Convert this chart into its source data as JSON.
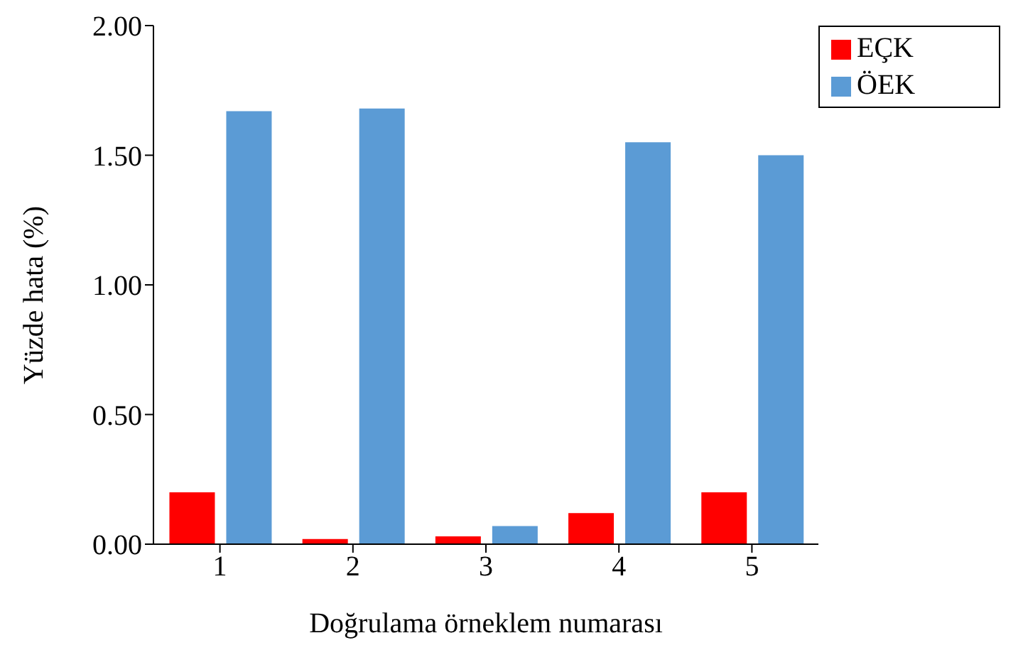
{
  "chart_data": {
    "type": "bar",
    "xlabel": "Doğrulama örneklem numarası",
    "ylabel": "Yüzde  hata (%)",
    "categories": [
      "1",
      "2",
      "3",
      "4",
      "5"
    ],
    "series": [
      {
        "name": "EÇK",
        "color": "#ff0000",
        "values": [
          0.2,
          0.02,
          0.03,
          0.12,
          0.2
        ]
      },
      {
        "name": "ÖEK",
        "color": "#5b9bd5",
        "values": [
          1.67,
          1.68,
          0.07,
          1.55,
          1.5
        ]
      }
    ],
    "ylim": [
      0,
      2
    ],
    "yticks": [
      {
        "value": 0,
        "label": "0.00"
      },
      {
        "value": 0.5,
        "label": "0.50"
      },
      {
        "value": 1,
        "label": "1.00"
      },
      {
        "value": 1.5,
        "label": "1.50"
      },
      {
        "value": 2,
        "label": "2.00"
      }
    ],
    "grid": false,
    "legend": "top right"
  }
}
